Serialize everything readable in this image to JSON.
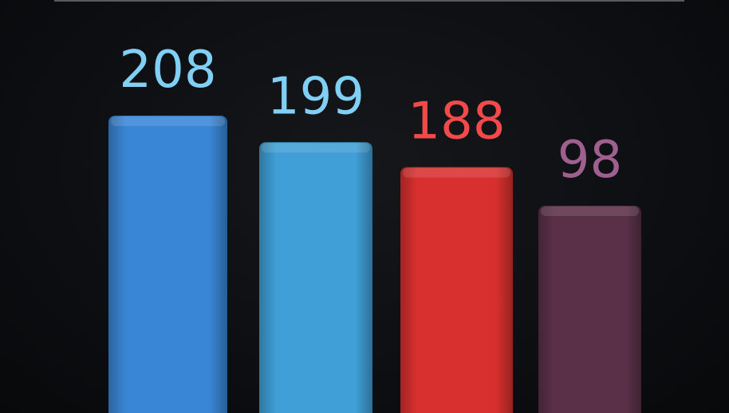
{
  "chart_data": {
    "type": "bar",
    "categories": [
      "",
      "",
      "",
      ""
    ],
    "values": [
      208,
      199,
      188,
      98
    ],
    "data_labels": [
      "208",
      "199",
      "188",
      "98"
    ],
    "colors": [
      "#3a86d6",
      "#3f9fd6",
      "#d8302e",
      "#5a3048"
    ],
    "label_colors": [
      "#80d0f6",
      "#80d0f6",
      "#f24a4a",
      "#a0608f"
    ],
    "title": "",
    "xlabel": "",
    "ylabel": "",
    "grid": false,
    "style": "3d"
  }
}
